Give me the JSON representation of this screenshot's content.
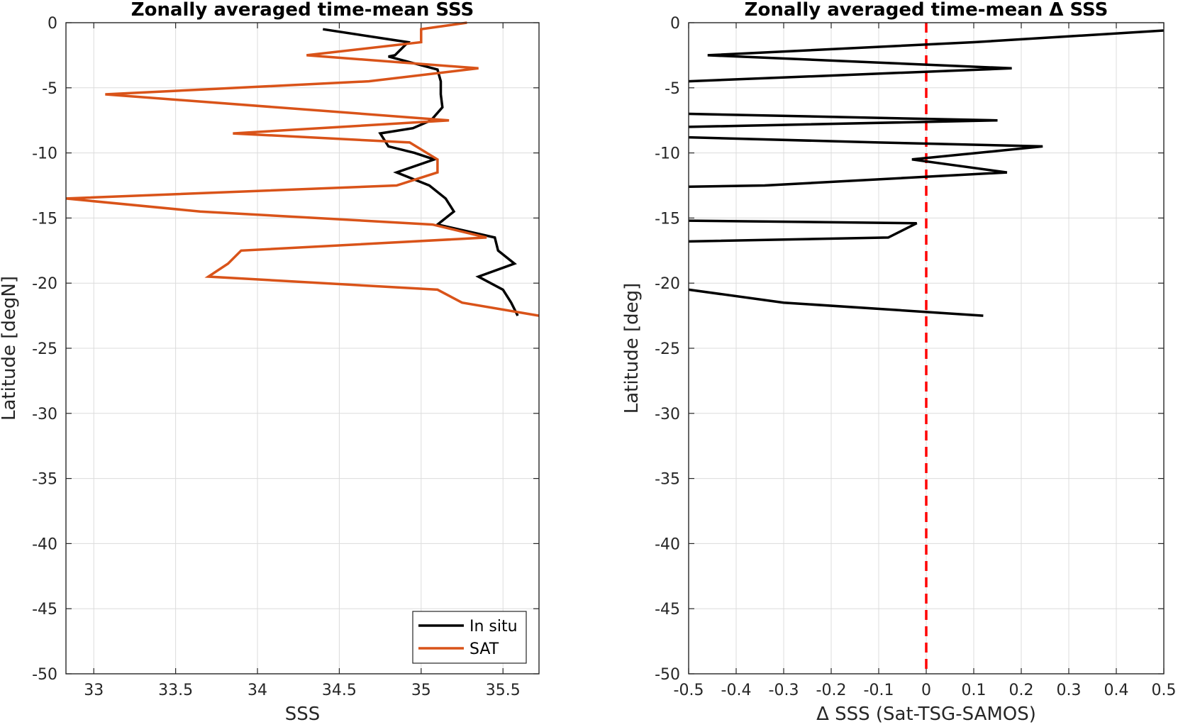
{
  "chart_data": [
    {
      "type": "line",
      "title": "Zonally averaged time-mean SSS",
      "xlabel": "SSS",
      "ylabel": "Latitude [degN]",
      "xlim": [
        32.83,
        35.72
      ],
      "ylim": [
        -50,
        0
      ],
      "xticks": [
        33,
        33.5,
        34,
        34.5,
        35,
        35.5
      ],
      "yticks": [
        0,
        -5,
        -10,
        -15,
        -20,
        -25,
        -30,
        -35,
        -40,
        -45,
        -50
      ],
      "grid": true,
      "legend_position": "bottom-right",
      "series": [
        {
          "name": "In situ",
          "color": "#000000",
          "points": [
            [
              34.4,
              -0.5
            ],
            [
              34.92,
              -1.5
            ],
            [
              34.84,
              -2.5
            ],
            [
              34.8,
              -2.6
            ],
            [
              35.1,
              -3.6
            ],
            [
              35.12,
              -4.5
            ],
            [
              35.12,
              -5.5
            ],
            [
              35.13,
              -6.5
            ],
            [
              35.06,
              -7.5
            ],
            [
              34.95,
              -8.1
            ],
            [
              34.75,
              -8.5
            ],
            [
              34.8,
              -9.5
            ],
            [
              34.96,
              -10.0
            ],
            [
              35.08,
              -10.5
            ],
            [
              34.85,
              -11.5
            ],
            [
              35.05,
              -12.5
            ],
            [
              35.15,
              -13.5
            ],
            [
              35.2,
              -14.5
            ],
            [
              35.1,
              -15.5
            ],
            [
              35.45,
              -16.5
            ],
            [
              35.47,
              -17.5
            ],
            [
              35.57,
              -18.5
            ],
            [
              35.35,
              -19.5
            ],
            [
              35.5,
              -20.5
            ],
            [
              35.55,
              -21.5
            ],
            [
              35.59,
              -22.5
            ]
          ]
        },
        {
          "name": "SAT",
          "color": "#D95319",
          "points": [
            [
              35.28,
              0.0
            ],
            [
              35.0,
              -0.5
            ],
            [
              35.0,
              -1.5
            ],
            [
              34.3,
              -2.5
            ],
            [
              35.35,
              -3.5
            ],
            [
              34.68,
              -4.5
            ],
            [
              33.07,
              -5.5
            ],
            [
              35.17,
              -7.5
            ],
            [
              33.85,
              -8.5
            ],
            [
              34.93,
              -9.2
            ],
            [
              35.1,
              -10.5
            ],
            [
              35.1,
              -11.5
            ],
            [
              34.85,
              -12.5
            ],
            [
              32.83,
              -13.5
            ],
            [
              33.65,
              -14.5
            ],
            [
              35.07,
              -15.5
            ],
            [
              35.4,
              -16.5
            ],
            [
              33.9,
              -17.5
            ],
            [
              33.82,
              -18.5
            ],
            [
              33.7,
              -19.5
            ],
            [
              35.1,
              -20.5
            ],
            [
              35.25,
              -21.5
            ],
            [
              35.72,
              -22.5
            ]
          ]
        }
      ]
    },
    {
      "type": "line",
      "title": "Zonally averaged time-mean Δ SSS",
      "xlabel": "Δ SSS (Sat-TSG-SAMOS)",
      "ylabel": "Latitude [deg]",
      "xlim": [
        -0.5,
        0.5
      ],
      "ylim": [
        -50,
        0
      ],
      "xticks": [
        -0.5,
        -0.4,
        -0.3,
        -0.2,
        -0.1,
        0,
        0.1,
        0.2,
        0.3,
        0.4,
        0.5
      ],
      "xtick_labels": [
        "-0.5",
        "-0.4",
        "-0.3",
        "-0.2",
        "-0.1",
        "0",
        "0.1",
        "0.2",
        "0.3",
        "0.4",
        "0.5"
      ],
      "yticks": [
        0,
        -5,
        -10,
        -15,
        -20,
        -25,
        -30,
        -35,
        -40,
        -45,
        -50
      ],
      "grid": true,
      "reference_line": {
        "x": 0,
        "color": "#FF0000",
        "style": "dashed"
      },
      "series": [
        {
          "name": "",
          "color": "#000000",
          "segments": [
            [
              [
                0.5,
                -0.6
              ],
              [
                0.1,
                -1.5
              ],
              [
                -0.46,
                -2.5
              ],
              [
                0.18,
                -3.5
              ],
              [
                -0.5,
                -4.5
              ]
            ],
            [
              [
                -0.5,
                -7.0
              ],
              [
                0.15,
                -7.5
              ],
              [
                -0.5,
                -8.0
              ]
            ],
            [
              [
                -0.5,
                -8.8
              ],
              [
                -0.1,
                -9.2
              ],
              [
                0.245,
                -9.5
              ],
              [
                -0.03,
                -10.5
              ],
              [
                0.17,
                -11.5
              ],
              [
                -0.34,
                -12.5
              ],
              [
                -0.5,
                -12.6
              ]
            ],
            [
              [
                -0.5,
                -15.2
              ],
              [
                -0.02,
                -15.4
              ],
              [
                -0.08,
                -16.5
              ],
              [
                -0.5,
                -16.8
              ]
            ],
            [
              [
                -0.5,
                -20.5
              ],
              [
                -0.3,
                -21.5
              ],
              [
                0.12,
                -22.5
              ]
            ]
          ]
        }
      ]
    }
  ]
}
